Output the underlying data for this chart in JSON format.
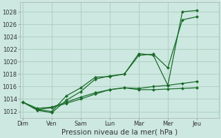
{
  "xlabel": "Pression niveau de la mer( hPa )",
  "bg_color": "#cce8e0",
  "grid_color": "#aaccbb",
  "line_color": "#1a6b2a",
  "days": [
    "Dim",
    "Ven",
    "Sam",
    "Lun",
    "Mar",
    "Mer",
    "Jeu"
  ],
  "yticks": [
    1012,
    1014,
    1016,
    1018,
    1020,
    1022,
    1024,
    1026,
    1028
  ],
  "ylim": [
    1011.0,
    1029.5
  ],
  "xlim": [
    -0.2,
    13.5
  ],
  "day_x": [
    0,
    2,
    4,
    6,
    8,
    10,
    12
  ],
  "series": [
    [
      1013.5,
      1012.3,
      1012.6,
      1013.3,
      1014.0,
      1014.8,
      1015.5,
      1015.8,
      1015.7,
      1016.0,
      1016.2,
      1016.5,
      1016.8
    ],
    [
      1013.5,
      1012.5,
      1012.7,
      1013.5,
      1014.3,
      1015.0,
      1015.5,
      1015.8,
      1015.5,
      1015.5,
      1015.6,
      1015.7,
      1015.8
    ],
    [
      1013.5,
      1012.2,
      1011.8,
      1013.8,
      1015.2,
      1017.2,
      1017.7,
      1018.0,
      1021.0,
      1021.2,
      1019.0,
      1026.7,
      1027.2
    ],
    [
      1013.5,
      1012.3,
      1012.0,
      1014.5,
      1015.8,
      1017.5,
      1017.6,
      1018.0,
      1021.3,
      1021.0,
      1016.2,
      1028.0,
      1028.2
    ]
  ],
  "xlabel_fontsize": 7.5,
  "tick_fontsize": 6.0,
  "linewidth": 0.9,
  "markersize": 2.2
}
